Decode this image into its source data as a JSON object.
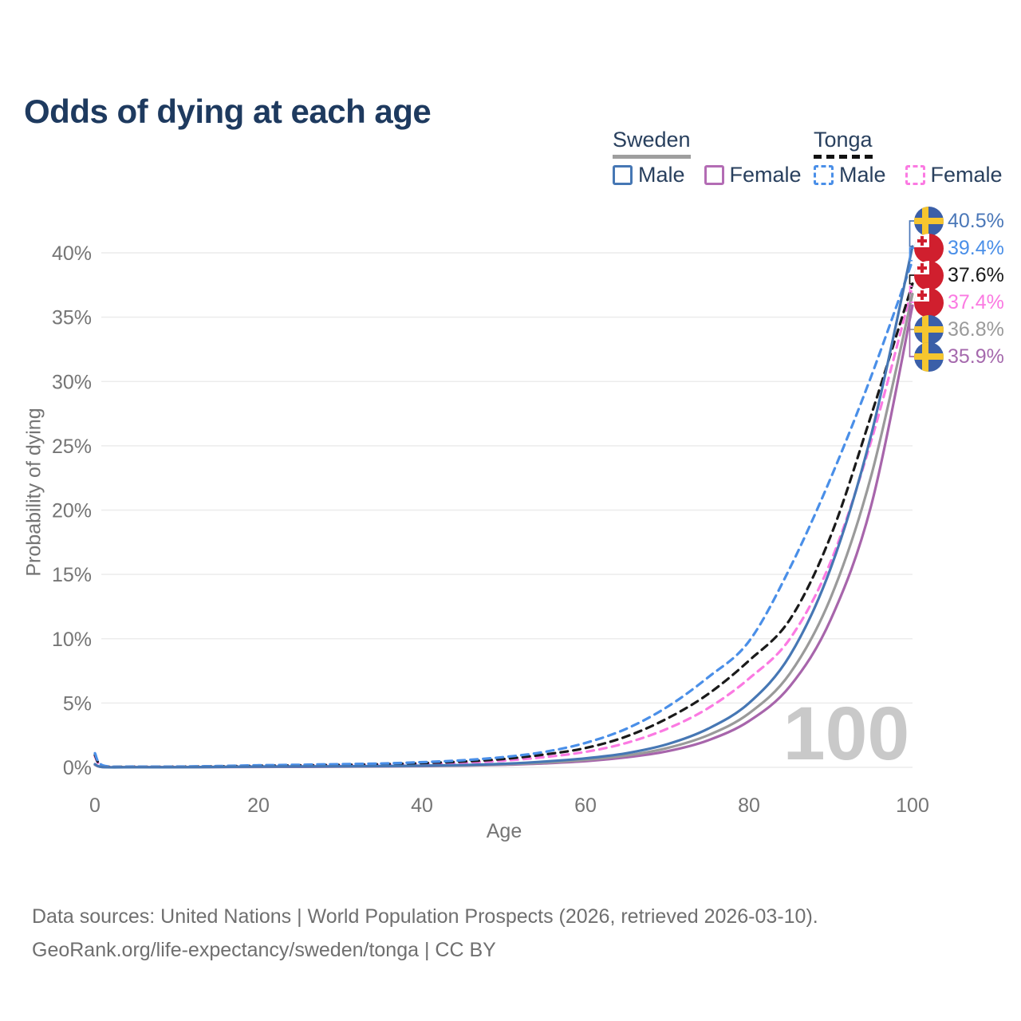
{
  "title": "Odds of dying at each age",
  "legend": {
    "sweden": {
      "label": "Sweden",
      "male": "Male",
      "female": "Female"
    },
    "tonga": {
      "label": "Tonga",
      "male": "Male",
      "female": "Female"
    }
  },
  "caption": {
    "line1": "Data sources: United Nations | World Population Prospects (2026, retrieved 2026-03-10).",
    "line2": "GeoRank.org/life-expectancy/sweden/tonga | CC BY"
  },
  "chart_data": {
    "type": "line",
    "xlabel": "Age",
    "ylabel": "Probability of dying",
    "xlim": [
      0,
      100
    ],
    "ylim": [
      0,
      43
    ],
    "grid": "horizontal-only",
    "x_ticks": [
      0,
      20,
      40,
      60,
      80,
      100
    ],
    "y_ticks": [
      {
        "value": 0,
        "label": "0%"
      },
      {
        "value": 5,
        "label": "5%"
      },
      {
        "value": 10,
        "label": "10%"
      },
      {
        "value": 15,
        "label": "15%"
      },
      {
        "value": 20,
        "label": "20%"
      },
      {
        "value": 25,
        "label": "25%"
      },
      {
        "value": 30,
        "label": "30%"
      },
      {
        "value": 35,
        "label": "35%"
      },
      {
        "value": 40,
        "label": "40%"
      }
    ],
    "hover_age_watermark": "100",
    "ages": [
      0,
      1,
      5,
      10,
      15,
      20,
      25,
      30,
      35,
      40,
      45,
      50,
      55,
      60,
      65,
      70,
      75,
      80,
      85,
      90,
      95,
      100
    ],
    "series": [
      {
        "id": "tonga_female",
        "country": "Tonga",
        "sex": "Female",
        "color": "#fb7ae2",
        "dashed": true,
        "values": [
          0.85,
          0.1,
          0.04,
          0.04,
          0.06,
          0.1,
          0.13,
          0.16,
          0.2,
          0.26,
          0.36,
          0.52,
          0.8,
          1.2,
          1.9,
          3.0,
          4.6,
          6.9,
          10.0,
          16.0,
          25.5,
          37.4
        ]
      },
      {
        "id": "tonga_both",
        "country": "Tonga",
        "sex": "Both sexes",
        "color": "#1a1a1a",
        "dashed": true,
        "values": [
          0.95,
          0.12,
          0.05,
          0.05,
          0.08,
          0.13,
          0.16,
          0.2,
          0.25,
          0.33,
          0.45,
          0.65,
          1.0,
          1.5,
          2.4,
          3.8,
          5.7,
          8.3,
          11.5,
          18.0,
          27.5,
          37.6
        ]
      },
      {
        "id": "tonga_male",
        "country": "Tonga",
        "sex": "Male",
        "color": "#4a8fe8",
        "dashed": true,
        "values": [
          1.1,
          0.15,
          0.06,
          0.06,
          0.1,
          0.16,
          0.2,
          0.25,
          0.3,
          0.4,
          0.55,
          0.8,
          1.2,
          1.9,
          3.0,
          4.7,
          7.0,
          9.8,
          15.5,
          22.5,
          30.5,
          39.4
        ]
      },
      {
        "id": "sweden_female",
        "country": "Sweden",
        "sex": "Female",
        "color": "#a765ab",
        "dashed": false,
        "values": [
          0.2,
          0.02,
          0.01,
          0.01,
          0.02,
          0.03,
          0.04,
          0.05,
          0.07,
          0.09,
          0.13,
          0.2,
          0.31,
          0.48,
          0.78,
          1.25,
          2.1,
          3.6,
          6.3,
          11.5,
          20.5,
          35.9
        ]
      },
      {
        "id": "sweden_both",
        "country": "Sweden",
        "sex": "Both sexes",
        "color": "#9a9a9a",
        "dashed": false,
        "values": [
          0.22,
          0.02,
          0.01,
          0.01,
          0.03,
          0.05,
          0.06,
          0.07,
          0.08,
          0.11,
          0.15,
          0.23,
          0.37,
          0.58,
          0.92,
          1.5,
          2.5,
          4.2,
          7.3,
          13.2,
          22.8,
          36.8
        ]
      },
      {
        "id": "sweden_male",
        "country": "Sweden",
        "sex": "Male",
        "color": "#4677b4",
        "dashed": false,
        "values": [
          0.25,
          0.02,
          0.01,
          0.01,
          0.03,
          0.06,
          0.07,
          0.08,
          0.1,
          0.13,
          0.18,
          0.28,
          0.45,
          0.7,
          1.1,
          1.8,
          3.0,
          5.0,
          8.7,
          15.5,
          26.0,
          40.5
        ]
      }
    ],
    "end_labels": [
      {
        "series": "sweden_male",
        "flag": "sweden",
        "value": "40.5%",
        "end_pct": 40.5,
        "color": "#4a77b8"
      },
      {
        "series": "tonga_male",
        "flag": "tonga",
        "value": "39.4%",
        "end_pct": 39.4,
        "color": "#4a8fe8"
      },
      {
        "series": "tonga_both",
        "flag": "tonga",
        "value": "37.6%",
        "end_pct": 37.6,
        "color": "#1a1a1a"
      },
      {
        "series": "tonga_female",
        "flag": "tonga",
        "value": "37.4%",
        "end_pct": 37.4,
        "color": "#fb7ae2"
      },
      {
        "series": "sweden_both",
        "flag": "sweden",
        "value": "36.8%",
        "end_pct": 36.8,
        "color": "#9a9a9a"
      },
      {
        "series": "sweden_female",
        "flag": "sweden",
        "value": "35.9%",
        "end_pct": 35.9,
        "color": "#a569ad"
      }
    ]
  }
}
